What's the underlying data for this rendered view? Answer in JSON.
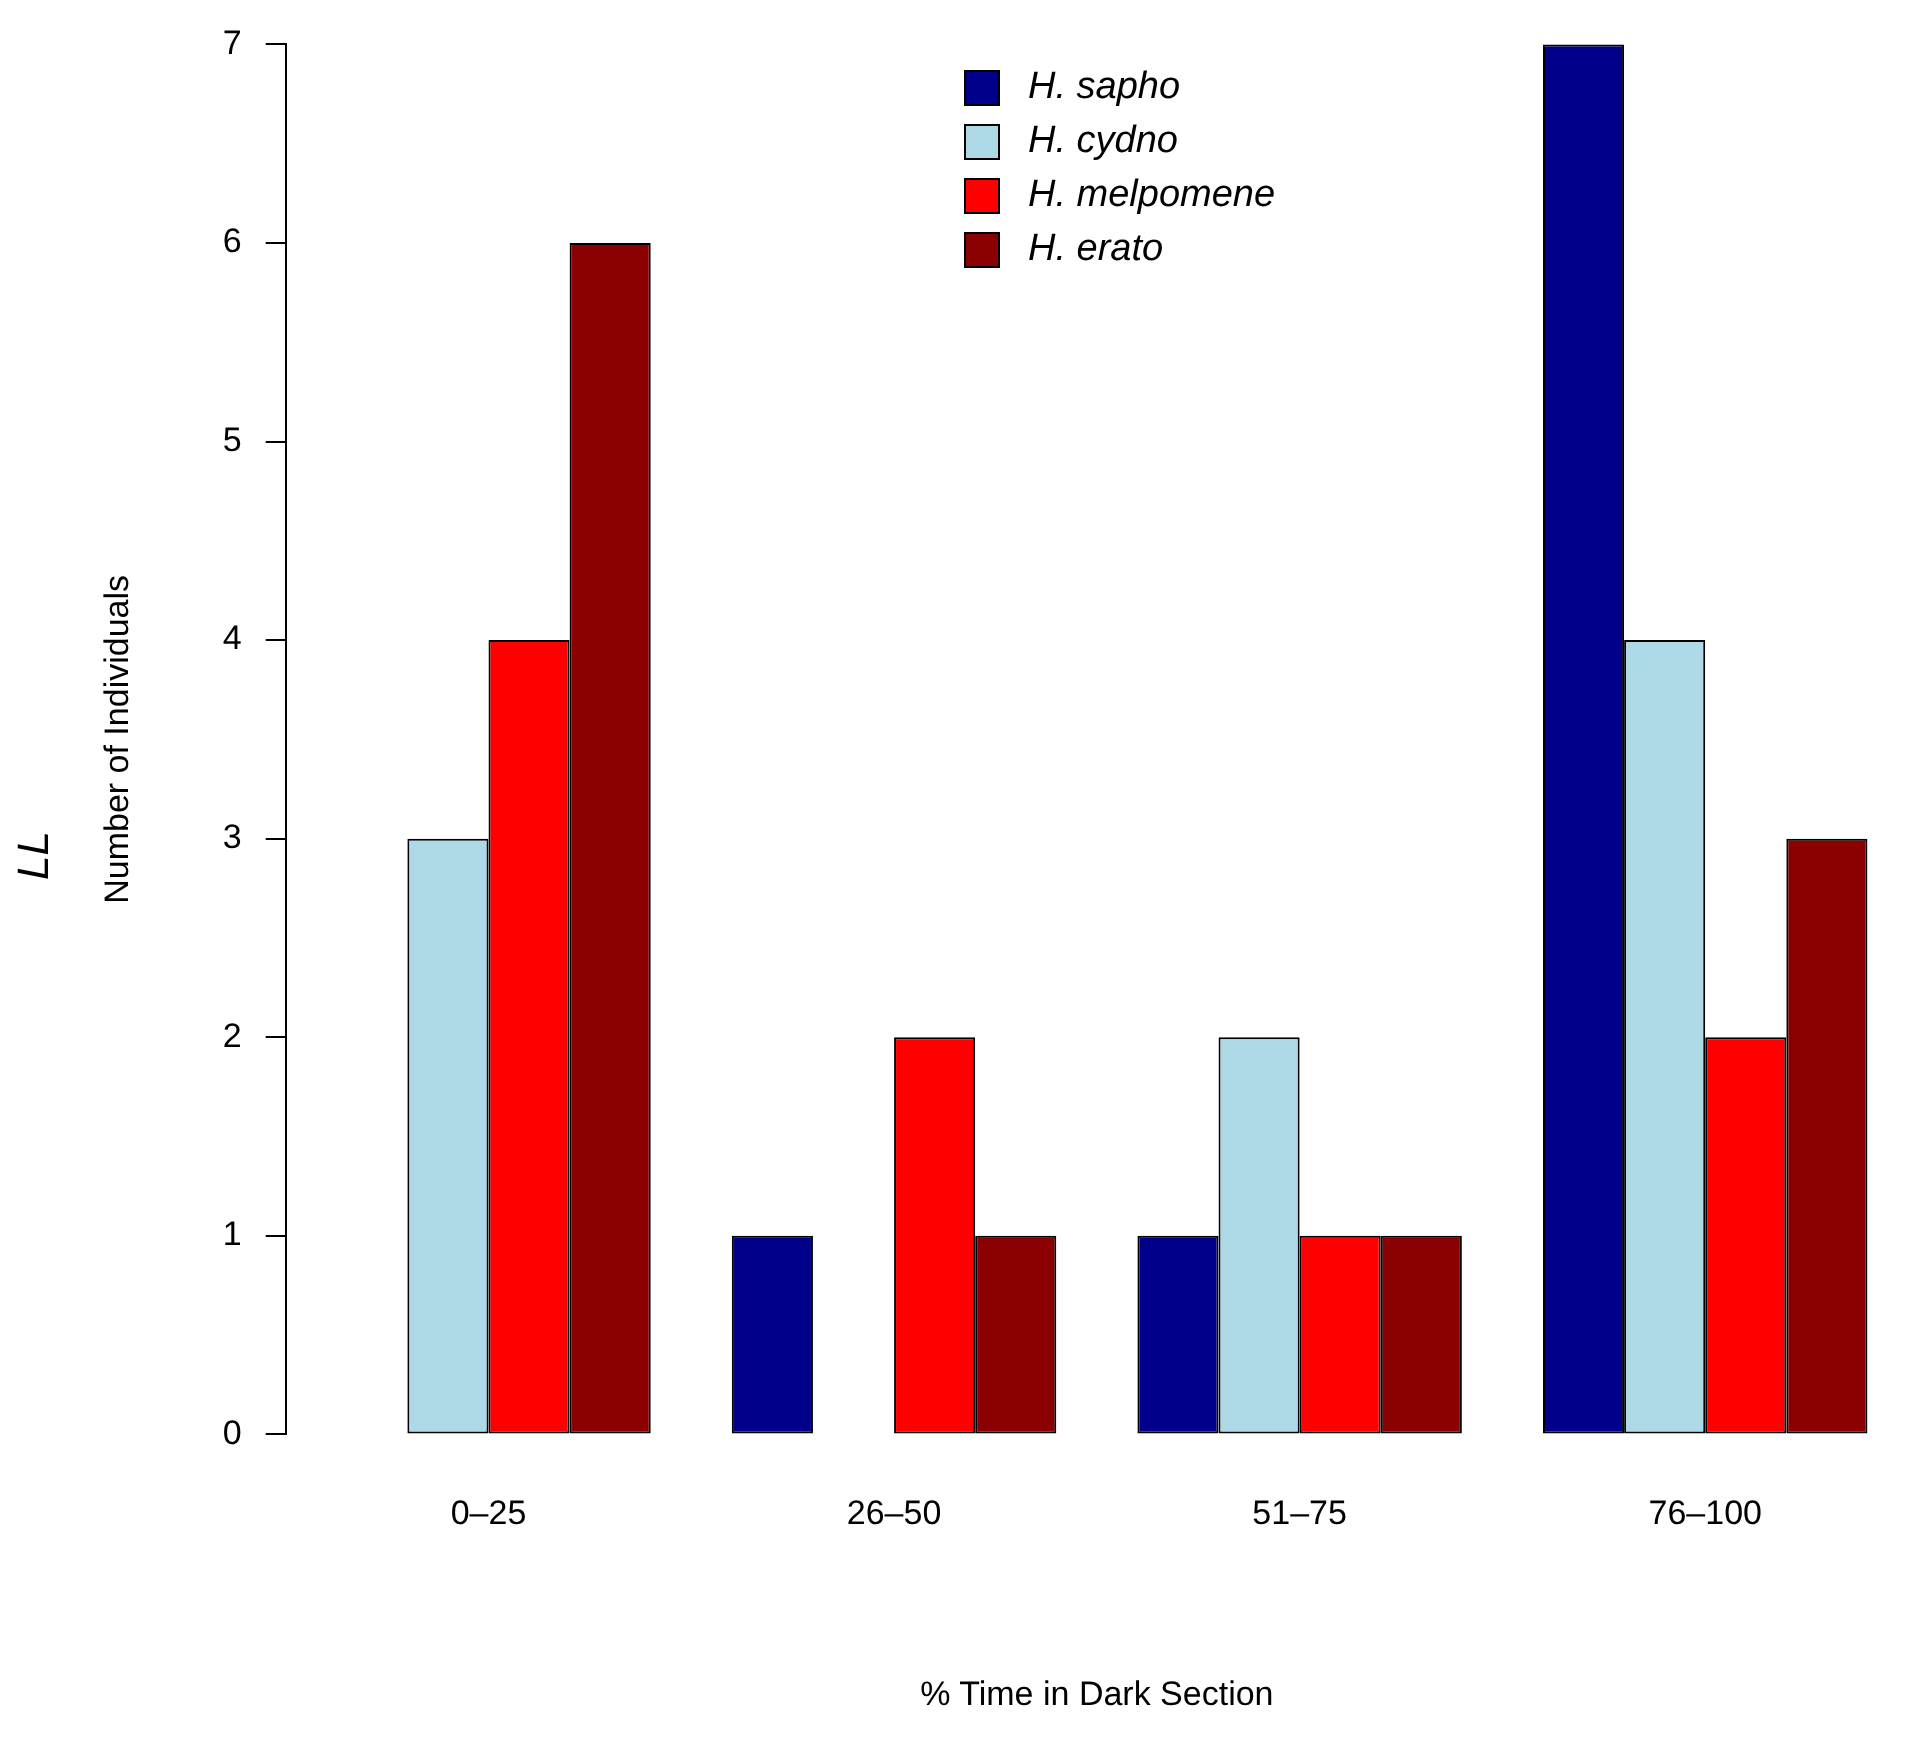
{
  "chart_data": {
    "type": "bar",
    "xlabel": "% Time in Dark Section",
    "ylabel": "Number of Individuals",
    "annotations": [
      "LL"
    ],
    "categories": [
      "0–25",
      "26–50",
      "51–75",
      "76–100"
    ],
    "series": [
      {
        "name": "H. sapho",
        "color": "#00008b",
        "values": [
          0,
          1,
          1,
          7
        ]
      },
      {
        "name": "H. cydno",
        "color": "#add8e6",
        "values": [
          3,
          0,
          2,
          4
        ]
      },
      {
        "name": "H. melpomene",
        "color": "#ff0000",
        "values": [
          4,
          2,
          1,
          2
        ]
      },
      {
        "name": "H. erato",
        "color": "#8b0000",
        "values": [
          6,
          1,
          1,
          3
        ]
      }
    ],
    "ylim": [
      0,
      7
    ],
    "yticks": [
      0,
      1,
      2,
      3,
      4,
      5,
      6,
      7
    ],
    "grid": false,
    "legend": "top"
  }
}
